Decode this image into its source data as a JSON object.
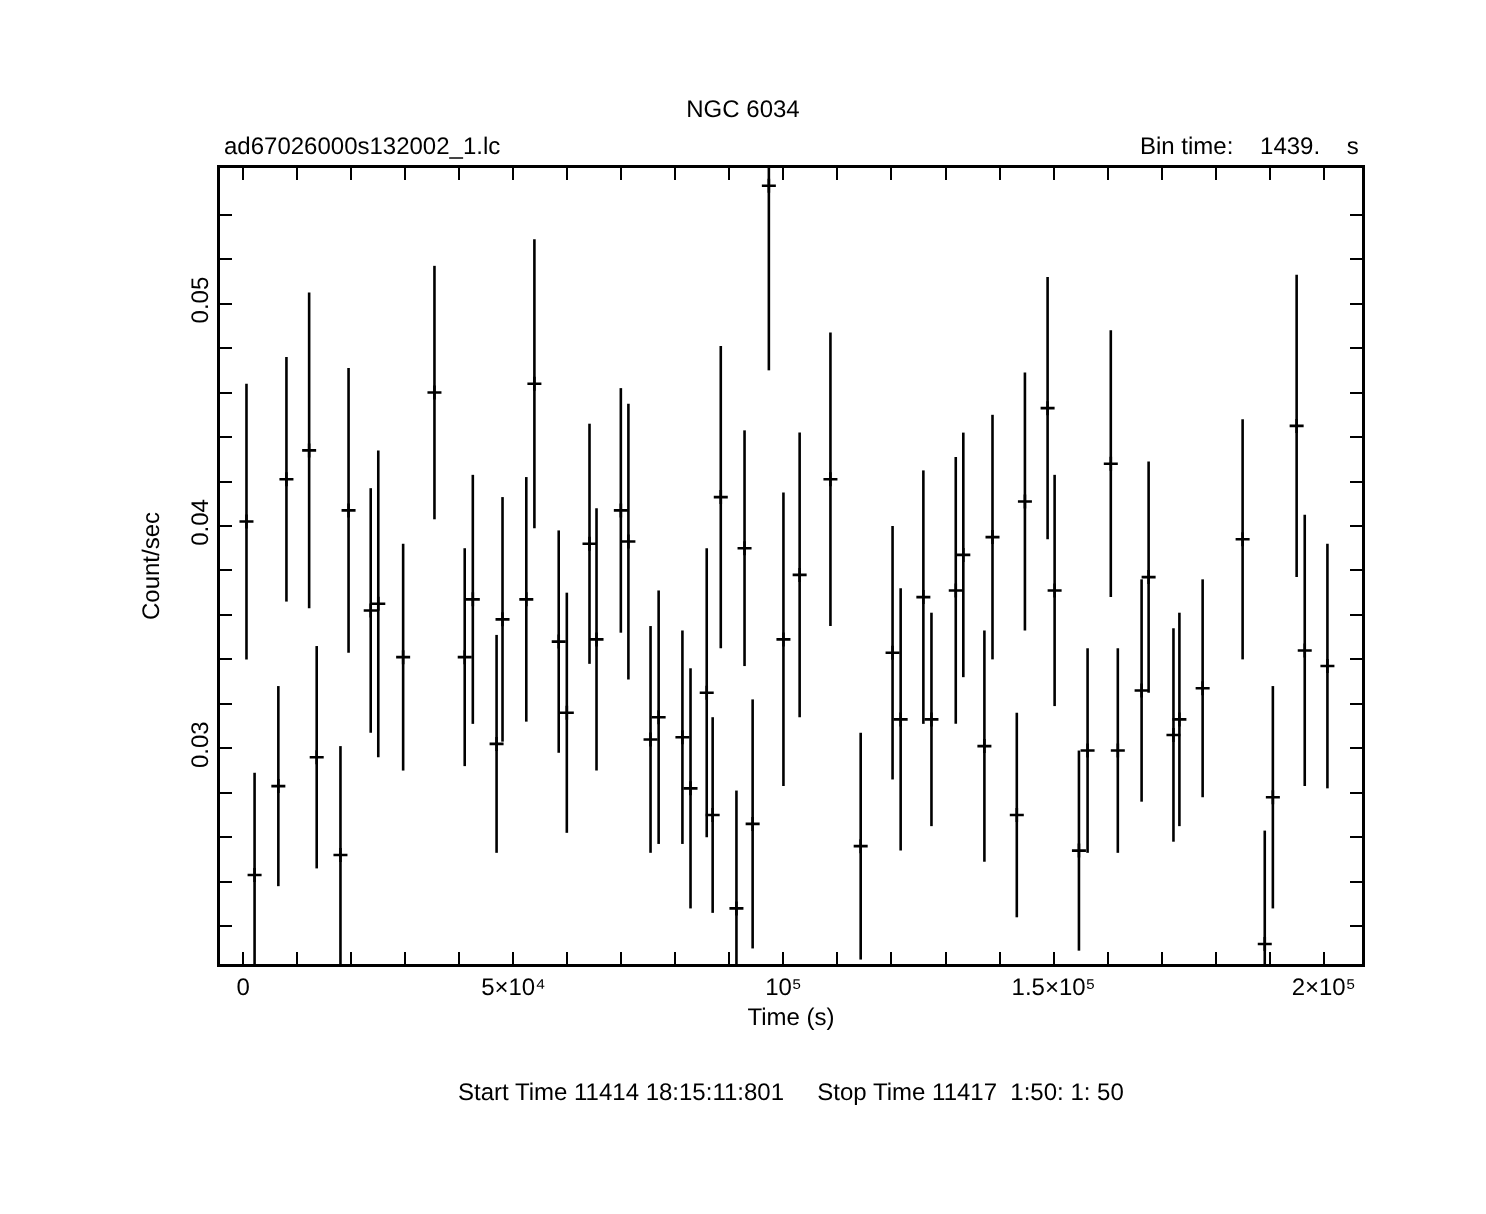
{
  "chart_data": {
    "type": "scatter",
    "title": "NGC 6034",
    "subtitle": "ad67026000s132002_1.lc",
    "xlabel": "Time (s)",
    "ylabel": "Count/sec",
    "annotations": [
      "Bin time:    1439.    s",
      "Start Time 11414 18:15:11:801     Stop Time 11417  1:50: 1: 50"
    ],
    "marker": "cross",
    "grid": false,
    "xlim": [
      -4300,
      207100
    ],
    "ylim": [
      0.0203,
      0.0561
    ],
    "xticks": [
      {
        "value": 0,
        "label": "0"
      },
      {
        "value": 10000,
        "label": null
      },
      {
        "value": 20000,
        "label": null
      },
      {
        "value": 30000,
        "label": null
      },
      {
        "value": 40000,
        "label": null
      },
      {
        "value": 50000,
        "label": "5×10⁴"
      },
      {
        "value": 60000,
        "label": null
      },
      {
        "value": 70000,
        "label": null
      },
      {
        "value": 80000,
        "label": null
      },
      {
        "value": 90000,
        "label": null
      },
      {
        "value": 100000,
        "label": "10⁵"
      },
      {
        "value": 110000,
        "label": null
      },
      {
        "value": 120000,
        "label": null
      },
      {
        "value": 130000,
        "label": null
      },
      {
        "value": 140000,
        "label": null
      },
      {
        "value": 150000,
        "label": "1.5×10⁵"
      },
      {
        "value": 160000,
        "label": null
      },
      {
        "value": 170000,
        "label": null
      },
      {
        "value": 180000,
        "label": null
      },
      {
        "value": 190000,
        "label": null
      },
      {
        "value": 200000,
        "label": "2×10⁵"
      }
    ],
    "yticks": [
      {
        "value": 0.022,
        "label": null
      },
      {
        "value": 0.024,
        "label": null
      },
      {
        "value": 0.026,
        "label": null
      },
      {
        "value": 0.028,
        "label": null
      },
      0.03,
      {
        "value": 0.032,
        "label": null
      },
      {
        "value": 0.034,
        "label": null
      },
      {
        "value": 0.036,
        "label": null
      },
      {
        "value": 0.038,
        "label": null
      },
      0.04,
      {
        "value": 0.042,
        "label": null
      },
      {
        "value": 0.044,
        "label": null
      },
      {
        "value": 0.046,
        "label": null
      },
      {
        "value": 0.048,
        "label": null
      },
      0.05,
      {
        "value": 0.052,
        "label": null
      },
      {
        "value": 0.054,
        "label": null
      }
    ],
    "x": [
      600,
      2100,
      6500,
      8000,
      12200,
      13600,
      18000,
      19500,
      23600,
      25000,
      29600,
      35400,
      41000,
      42500,
      46900,
      48000,
      52400,
      53900,
      58400,
      59900,
      64100,
      65400,
      69900,
      71300,
      75400,
      76900,
      81300,
      82800,
      85800,
      86900,
      88400,
      91300,
      92800,
      94300,
      97300,
      100000,
      103000,
      108700,
      114300,
      120200,
      121700,
      125900,
      127400,
      131900,
      133300,
      137200,
      138700,
      143200,
      144700,
      148900,
      150200,
      154700,
      156300,
      160600,
      161900,
      166300,
      167600,
      172200,
      173300,
      177600,
      185000,
      189100,
      190600,
      195000,
      196500,
      200700
    ],
    "values": [
      0.0402,
      0.0243,
      0.0283,
      0.0421,
      0.0434,
      0.0296,
      0.0252,
      0.0407,
      0.0362,
      0.0365,
      0.0341,
      0.046,
      0.0341,
      0.0367,
      0.0302,
      0.0358,
      0.0367,
      0.0464,
      0.0348,
      0.0316,
      0.0392,
      0.0349,
      0.0407,
      0.0393,
      0.0304,
      0.0314,
      0.0305,
      0.0282,
      0.0325,
      0.027,
      0.0413,
      0.0228,
      0.039,
      0.0266,
      0.0553,
      0.0349,
      0.0378,
      0.0421,
      0.0256,
      0.0343,
      0.0313,
      0.0368,
      0.0313,
      0.0371,
      0.0387,
      0.0301,
      0.0395,
      0.027,
      0.0411,
      0.0453,
      0.0371,
      0.0254,
      0.0299,
      0.0428,
      0.0299,
      0.0326,
      0.0377,
      0.0306,
      0.0313,
      0.0327,
      0.0394,
      0.0212,
      0.0278,
      0.0445,
      0.0344,
      0.0337
    ],
    "errors": [
      0.0062,
      [
        0.0203,
        0.0289
      ],
      0.0045,
      0.0055,
      0.0071,
      0.005,
      [
        0.0203,
        0.0301
      ],
      0.0064,
      0.0055,
      0.0069,
      0.0051,
      0.0057,
      0.0049,
      0.0056,
      0.0049,
      0.0055,
      0.0055,
      0.0065,
      0.005,
      0.0054,
      0.0054,
      0.0059,
      0.0055,
      0.0062,
      0.0051,
      0.0057,
      0.0048,
      0.0054,
      0.0065,
      0.0044,
      0.0068,
      [
        0.0203,
        0.0281
      ],
      0.0053,
      0.0056,
      [
        0.047,
        0.0561
      ],
      0.0066,
      0.0064,
      0.0066,
      0.0051,
      0.0057,
      0.0059,
      0.0057,
      0.0048,
      0.006,
      0.0055,
      0.0052,
      0.0055,
      0.0046,
      0.0058,
      0.0059,
      0.0052,
      0.0045,
      0.0046,
      0.006,
      0.0046,
      0.005,
      0.0052,
      0.0048,
      0.0048,
      0.0049,
      0.0054,
      [
        0.0203,
        0.0263
      ],
      0.005,
      0.0068,
      0.0061,
      0.0055
    ]
  }
}
